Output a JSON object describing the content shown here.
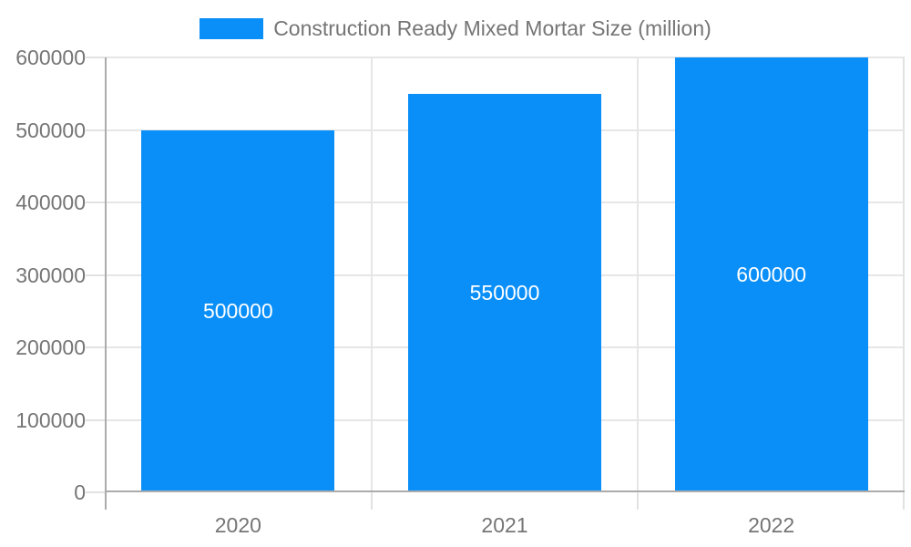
{
  "legend": {
    "label": "Construction Ready Mixed Mortar Size (million)"
  },
  "colors": {
    "bar": "#0a8ff9",
    "grid": "#e6e6e6",
    "tick": "#e2e2e2",
    "axis": "#ababab",
    "text": "#757575",
    "bar_label": "#ffffff",
    "background": "#ffffff"
  },
  "chart_data": {
    "type": "bar",
    "title": "Construction Ready Mixed Mortar Size (million)",
    "categories": [
      "2020",
      "2021",
      "2022"
    ],
    "values": [
      500000,
      550000,
      600000
    ],
    "bar_labels": [
      "500000",
      "550000",
      "600000"
    ],
    "xlabel": "",
    "ylabel": "",
    "ylim": [
      0,
      600000
    ],
    "ytick_step": 100000,
    "ytick_labels": [
      "0",
      "100000",
      "200000",
      "300000",
      "400000",
      "500000",
      "600000"
    ],
    "grid": true,
    "legend_position": "top",
    "bar_label_position": "center"
  }
}
